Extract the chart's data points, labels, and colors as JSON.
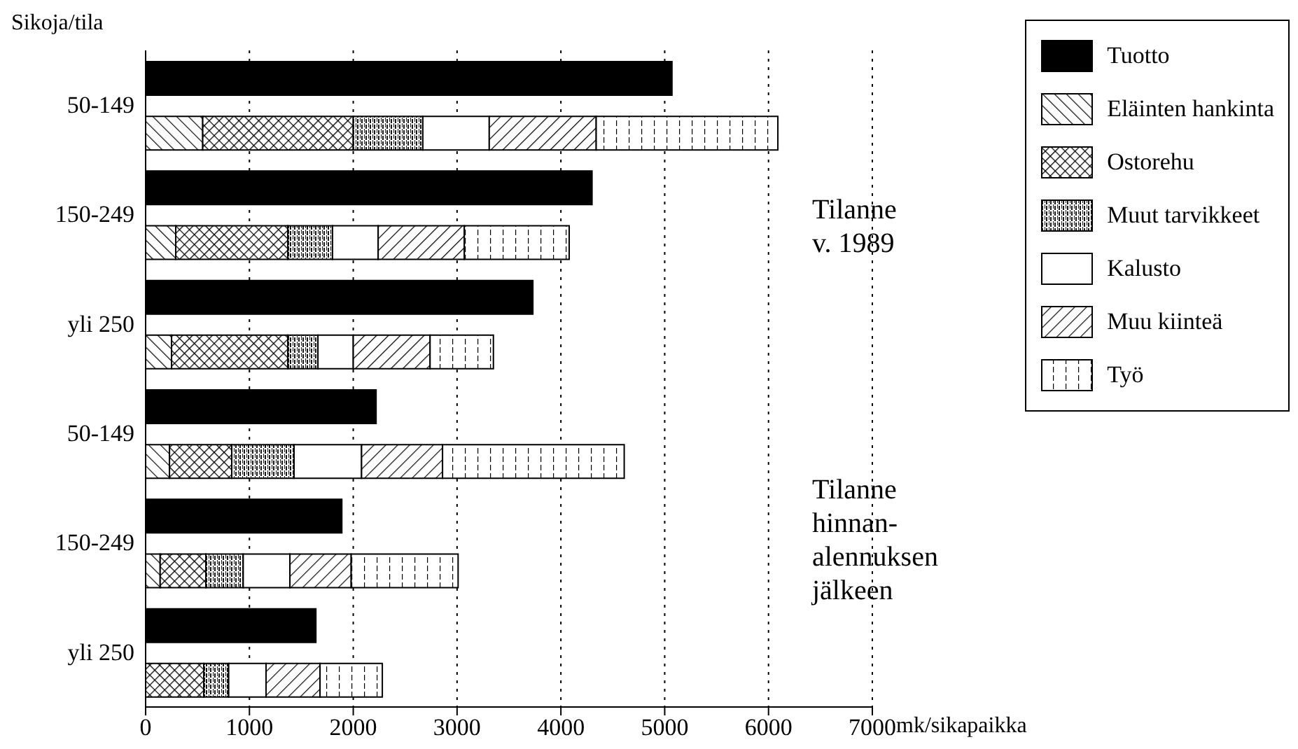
{
  "chart_data": {
    "type": "bar",
    "orientation": "horizontal",
    "stacked": true,
    "ylabel": "Sikoja/tila",
    "xlabel": "mk/sikapaikka",
    "categories": [
      "50-149",
      null,
      "150-249",
      null,
      "yli 250",
      null,
      "50-149",
      null,
      "150-249",
      null,
      "yli 250",
      null
    ],
    "series": [
      {
        "name": "Tuotto",
        "color": "#000000",
        "values": [
          5070,
          null,
          4300,
          null,
          3730,
          null,
          2220,
          null,
          1890,
          null,
          1640,
          null
        ]
      },
      {
        "name": "Eläinten hankinta",
        "color": "#000000",
        "values": [
          null,
          550,
          null,
          290,
          null,
          250,
          null,
          230,
          null,
          140,
          null,
          0
        ]
      },
      {
        "name": "Ostorehu",
        "color": "#000000",
        "values": [
          null,
          1450,
          null,
          1080,
          null,
          1120,
          null,
          600,
          null,
          440,
          null,
          560
        ]
      },
      {
        "name": "Muut tarvikkeet",
        "color": "#000000",
        "values": [
          null,
          670,
          null,
          430,
          null,
          290,
          null,
          600,
          null,
          360,
          null,
          240
        ]
      },
      {
        "name": "Kalusto",
        "color": "#ffffff",
        "values": [
          null,
          640,
          null,
          440,
          null,
          340,
          null,
          650,
          null,
          450,
          null,
          360
        ]
      },
      {
        "name": "Muu kiinteä",
        "color": "#000000",
        "values": [
          null,
          1030,
          null,
          830,
          null,
          740,
          null,
          780,
          null,
          590,
          null,
          520
        ]
      },
      {
        "name": "Työ",
        "color": "#000000",
        "values": [
          null,
          1750,
          null,
          1010,
          null,
          610,
          null,
          1750,
          null,
          1030,
          null,
          600
        ]
      }
    ],
    "xlim": [
      0,
      7000
    ],
    "xticks": [
      0,
      1000,
      2000,
      3000,
      4000,
      5000,
      6000,
      7000
    ],
    "grid": "x",
    "legend": "top right",
    "annotations": [
      "Tilanne v. 1989",
      "Tilanne hinnan-alennuksen jälkeen"
    ]
  }
}
